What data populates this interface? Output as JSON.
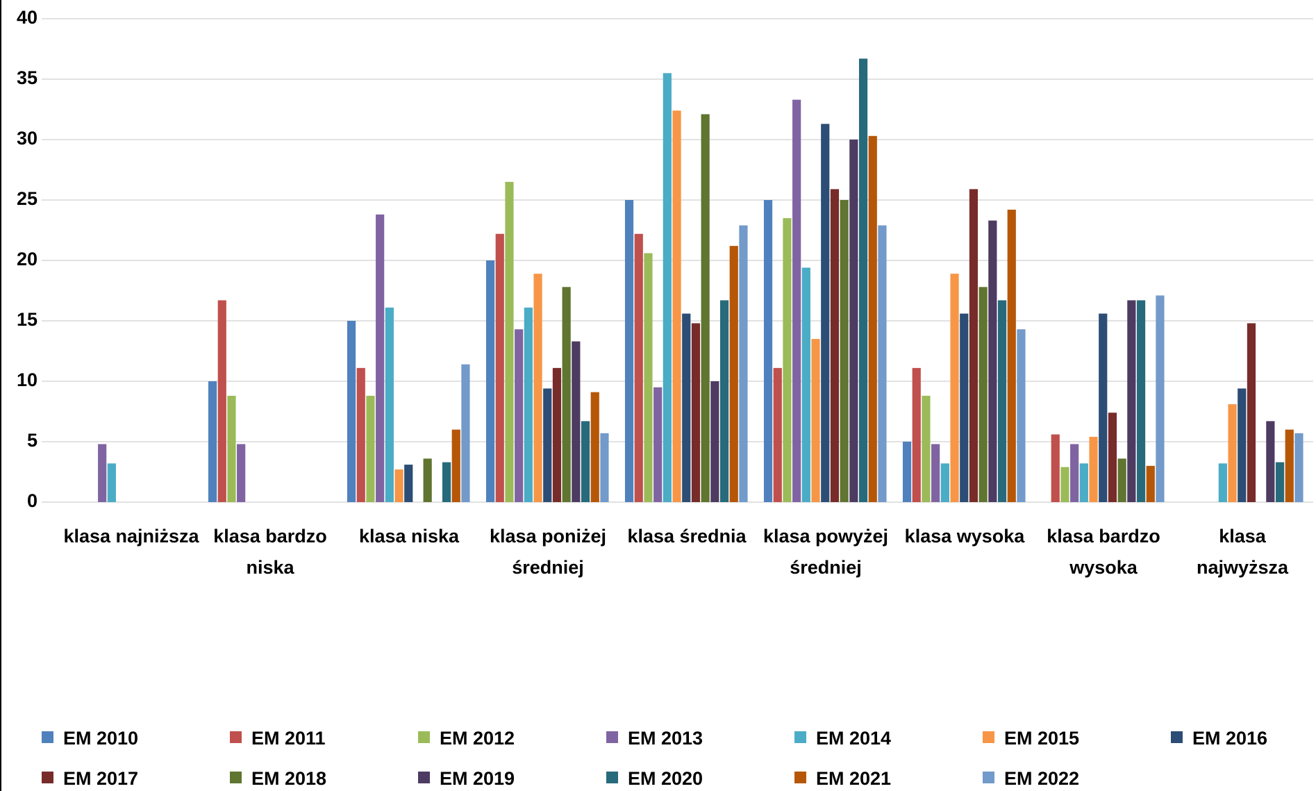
{
  "chart_data": {
    "type": "bar",
    "categories": [
      "klasa najniższa",
      "klasa bardzo niska",
      "klasa niska",
      "klasa poniżej średniej",
      "klasa średnia",
      "klasa powyżej średniej",
      "klasa wysoka",
      "klasa bardzo wysoka",
      "klasa najwyższa"
    ],
    "series": [
      {
        "name": "EM 2010",
        "color": "#4f81bd",
        "values": [
          0,
          10,
          15,
          20,
          25,
          25,
          5,
          0,
          0
        ]
      },
      {
        "name": "EM 2011",
        "color": "#c0504d",
        "values": [
          0,
          16.7,
          11.1,
          22.2,
          22.2,
          11.1,
          11.1,
          5.6,
          0
        ]
      },
      {
        "name": "EM 2012",
        "color": "#9bbb59",
        "values": [
          0,
          8.8,
          8.8,
          26.5,
          20.6,
          23.5,
          8.8,
          2.9,
          0
        ]
      },
      {
        "name": "EM 2013",
        "color": "#8064a2",
        "values": [
          4.8,
          4.8,
          23.8,
          14.3,
          9.5,
          33.3,
          4.8,
          4.8,
          0
        ]
      },
      {
        "name": "EM 2014",
        "color": "#4bacc6",
        "values": [
          3.2,
          0,
          16.1,
          16.1,
          35.5,
          19.4,
          3.2,
          3.2,
          3.2
        ]
      },
      {
        "name": "EM 2015",
        "color": "#f79646",
        "values": [
          0,
          0,
          2.7,
          18.9,
          32.4,
          13.5,
          18.9,
          5.4,
          8.1
        ]
      },
      {
        "name": "EM 2016",
        "color": "#2c4d75",
        "values": [
          0,
          0,
          3.1,
          9.4,
          15.6,
          31.3,
          15.6,
          15.6,
          9.4
        ]
      },
      {
        "name": "EM 2017",
        "color": "#772c2a",
        "values": [
          0,
          0,
          0,
          11.1,
          14.8,
          25.9,
          25.9,
          7.4,
          14.8
        ]
      },
      {
        "name": "EM 2018",
        "color": "#5f7530",
        "values": [
          0,
          0,
          3.6,
          17.8,
          32.1,
          25,
          17.8,
          3.6,
          0
        ]
      },
      {
        "name": "EM 2019",
        "color": "#4d3b62",
        "values": [
          0,
          0,
          0,
          13.3,
          10,
          30,
          23.3,
          16.7,
          6.7
        ]
      },
      {
        "name": "EM 2020",
        "color": "#276a7c",
        "values": [
          0,
          0,
          3.3,
          6.7,
          16.7,
          36.7,
          16.7,
          16.7,
          3.3
        ]
      },
      {
        "name": "EM 2021",
        "color": "#b65708",
        "values": [
          0,
          0,
          6,
          9.1,
          21.2,
          30.3,
          24.2,
          3,
          6
        ]
      },
      {
        "name": "EM 2022",
        "color": "#729aca",
        "values": [
          0,
          0,
          11.4,
          5.7,
          22.9,
          22.9,
          14.3,
          17.1,
          5.7
        ]
      }
    ],
    "ylim": [
      0,
      40
    ],
    "yticks": [
      0,
      5,
      10,
      15,
      20,
      25,
      30,
      35,
      40
    ],
    "grid": true
  }
}
